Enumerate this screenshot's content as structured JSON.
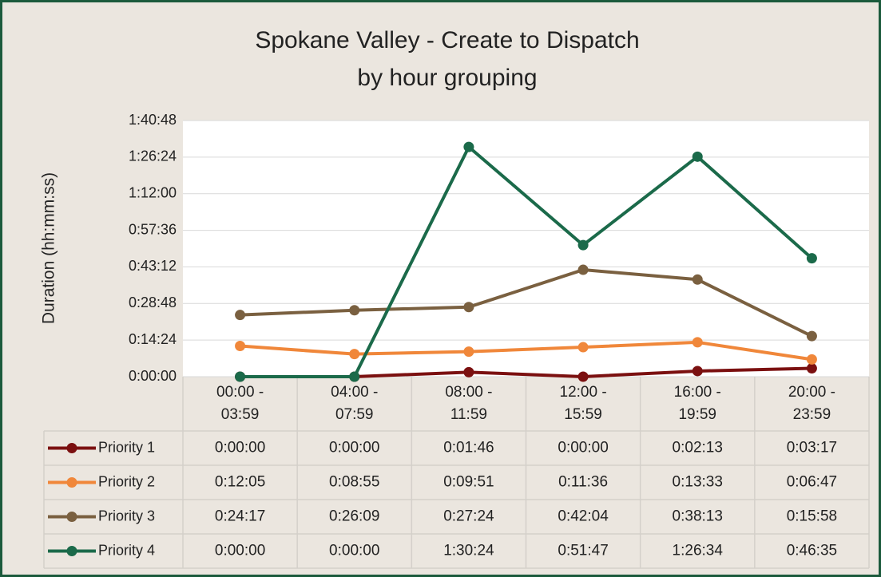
{
  "chart_data": {
    "type": "line",
    "title": "Spokane Valley - Create to Dispatch",
    "subtitle": "by hour grouping",
    "y_label": "Duration (hh:mm:ss)",
    "categories": [
      "00:00 - 03:59",
      "04:00 - 07:59",
      "08:00 - 11:59",
      "12:00 - 15:59",
      "16:00 - 19:59",
      "20:00 - 23:59"
    ],
    "ylim": [
      0,
      6048
    ],
    "yticks": [
      {
        "value": 0,
        "label": "0:00:00"
      },
      {
        "value": 864,
        "label": "0:14:24"
      },
      {
        "value": 1728,
        "label": "0:28:48"
      },
      {
        "value": 2592,
        "label": "0:43:12"
      },
      {
        "value": 3456,
        "label": "0:57:36"
      },
      {
        "value": 4320,
        "label": "1:12:00"
      },
      {
        "value": 5184,
        "label": "1:26:24"
      },
      {
        "value": 6048,
        "label": "1:40:48"
      }
    ],
    "grid": true,
    "data_table": true,
    "series": [
      {
        "name": "Priority 1",
        "color": "#7b1010",
        "values": [
          0,
          0,
          106,
          0,
          133,
          197
        ],
        "value_labels": [
          "0:00:00",
          "0:00:00",
          "0:01:46",
          "0:00:00",
          "0:02:13",
          "0:03:17"
        ]
      },
      {
        "name": "Priority 2",
        "color": "#f0873a",
        "values": [
          725,
          535,
          591,
          696,
          813,
          407
        ],
        "value_labels": [
          "0:12:05",
          "0:08:55",
          "0:09:51",
          "0:11:36",
          "0:13:33",
          "0:06:47"
        ]
      },
      {
        "name": "Priority 3",
        "color": "#7a6040",
        "values": [
          1457,
          1569,
          1644,
          2524,
          2293,
          958
        ],
        "value_labels": [
          "0:24:17",
          "0:26:09",
          "0:27:24",
          "0:42:04",
          "0:38:13",
          "0:15:58"
        ]
      },
      {
        "name": "Priority 4",
        "color": "#1b6a4a",
        "values": [
          0,
          0,
          5424,
          3107,
          5194,
          2795
        ],
        "value_labels": [
          "0:00:00",
          "0:00:00",
          "1:30:24",
          "0:51:47",
          "1:26:34",
          "0:46:35"
        ]
      }
    ]
  }
}
